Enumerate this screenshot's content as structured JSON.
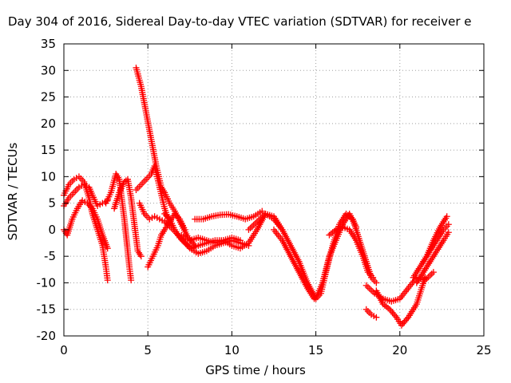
{
  "chart_data": {
    "type": "scatter",
    "title": "Day 304 of 2016, Sidereal Day-to-day VTEC variation (SDTVAR) for receiver e",
    "xlabel": "GPS time / hours",
    "ylabel": "SDTVAR / TECUs",
    "xlim": [
      0,
      25
    ],
    "ylim": [
      -20,
      35
    ],
    "xticks": [
      "0",
      "5",
      "10",
      "15",
      "20",
      "25"
    ],
    "yticks": [
      "-20",
      "-15",
      "-10",
      "-5",
      "0",
      "5",
      "10",
      "15",
      "20",
      "25",
      "30",
      "35"
    ],
    "grid": true,
    "marker": "plus",
    "color": "#ff0000",
    "series": [
      {
        "x": [
          0.0,
          0.3,
          0.6,
          0.9,
          1.2,
          1.5,
          1.7,
          2.0,
          2.3,
          2.5,
          2.6
        ],
        "y": [
          6.5,
          8.5,
          9.5,
          10.0,
          9.0,
          6.0,
          3.0,
          0.0,
          -3.0,
          -7.0,
          -9.5
        ]
      },
      {
        "x": [
          0.0,
          0.3,
          0.6,
          0.9,
          1.2,
          1.5,
          1.7,
          2.0,
          2.3,
          2.6
        ],
        "y": [
          4.5,
          6.0,
          7.0,
          8.0,
          8.5,
          8.0,
          6.5,
          4.5,
          5.0,
          5.5
        ]
      },
      {
        "x": [
          0.0,
          0.2,
          0.5,
          0.8,
          1.1,
          1.4,
          1.7,
          2.0,
          2.3,
          2.6
        ],
        "y": [
          0.0,
          -1.0,
          2.0,
          4.0,
          5.5,
          5.0,
          4.0,
          2.0,
          -1.0,
          -3.5
        ]
      },
      {
        "x": [
          2.5,
          2.8,
          3.1,
          3.3,
          3.6,
          3.9,
          4.0
        ],
        "y": [
          5.0,
          7.0,
          10.5,
          9.5,
          2.0,
          -7.0,
          -9.5
        ]
      },
      {
        "x": [
          3.0,
          3.3,
          3.6,
          3.8,
          4.0,
          4.2,
          4.4,
          4.6
        ],
        "y": [
          4.0,
          7.0,
          9.0,
          9.5,
          6.0,
          1.0,
          -4.0,
          -5.0
        ]
      },
      {
        "x": [
          4.3,
          4.6,
          4.9,
          5.2,
          5.5,
          5.8,
          6.0,
          6.3,
          6.6,
          7.0,
          7.4,
          7.8
        ],
        "y": [
          30.5,
          27.0,
          22.0,
          17.0,
          12.0,
          8.0,
          7.0,
          5.0,
          3.5,
          1.0,
          -1.5,
          -3.0
        ]
      },
      {
        "x": [
          4.3,
          4.6,
          4.9,
          5.2,
          5.4,
          5.7,
          6.0,
          6.3
        ],
        "y": [
          7.5,
          8.5,
          9.5,
          10.5,
          12.0,
          8.0,
          4.0,
          1.0
        ]
      },
      {
        "x": [
          4.5,
          4.8,
          5.1,
          5.4,
          5.7,
          6.0,
          6.2,
          6.5,
          6.8,
          7.1,
          7.5,
          8.0,
          8.5,
          9.0,
          9.5,
          10.0,
          10.5,
          11.0
        ],
        "y": [
          5.0,
          3.0,
          2.0,
          2.5,
          2.0,
          1.5,
          1.0,
          0.0,
          -1.0,
          -2.0,
          -3.5,
          -4.5,
          -4.0,
          -3.0,
          -2.5,
          -2.0,
          -2.5,
          -3.0
        ]
      },
      {
        "x": [
          5.0,
          5.3,
          5.6,
          5.8,
          6.0,
          6.3,
          6.6,
          6.9,
          7.2
        ],
        "y": [
          -7.0,
          -5.0,
          -3.0,
          -1.0,
          0.0,
          1.5,
          3.0,
          2.0,
          0.0
        ]
      },
      {
        "x": [
          6.0,
          6.3,
          6.6,
          6.9,
          7.2,
          7.6,
          8.0,
          8.5,
          9.0,
          9.5,
          10.0,
          10.5,
          11.0,
          11.5,
          12.0,
          12.5,
          13.0
        ],
        "y": [
          3.0,
          2.0,
          0.0,
          -1.5,
          -2.5,
          -3.5,
          -3.0,
          -2.5,
          -2.0,
          -2.0,
          -3.0,
          -3.5,
          -2.5,
          0.0,
          3.0,
          2.0,
          0.0
        ]
      },
      {
        "x": [
          7.8,
          8.3,
          8.8,
          9.3,
          9.8,
          10.3,
          10.8,
          11.3,
          11.8
        ],
        "y": [
          2.0,
          2.0,
          2.5,
          2.8,
          2.9,
          2.5,
          2.0,
          2.5,
          3.5
        ]
      },
      {
        "x": [
          7.0,
          7.5,
          8.0,
          8.5,
          9.0,
          9.5,
          10.0,
          10.5
        ],
        "y": [
          -1.0,
          -2.0,
          -1.5,
          -2.0,
          -2.5,
          -2.0,
          -1.5,
          -2.0
        ]
      },
      {
        "x": [
          11.0,
          11.5,
          12.0,
          12.5,
          13.0,
          13.5,
          14.0,
          14.5,
          15.0,
          15.3,
          15.6,
          16.0,
          16.4,
          16.8,
          17.2,
          17.6,
          18.0,
          18.3,
          18.6
        ],
        "y": [
          0.0,
          1.5,
          3.0,
          2.5,
          0.0,
          -3.0,
          -6.0,
          -10.0,
          -13.0,
          -12.0,
          -8.0,
          -3.0,
          1.0,
          3.0,
          2.0,
          -2.0,
          -6.0,
          -9.0,
          -10.0
        ]
      },
      {
        "x": [
          12.5,
          13.0,
          13.5,
          14.0,
          14.5,
          14.9
        ],
        "y": [
          0.0,
          -2.0,
          -5.0,
          -8.0,
          -11.0,
          -13.0
        ]
      },
      {
        "x": [
          15.0,
          15.4,
          15.8,
          16.2,
          16.6,
          17.0,
          17.4
        ],
        "y": [
          -13.0,
          -10.0,
          -5.0,
          -2.0,
          1.0,
          3.0,
          0.5
        ]
      },
      {
        "x": [
          15.8,
          16.2,
          16.6,
          17.0,
          17.4,
          17.8,
          18.1,
          18.4
        ],
        "y": [
          -1.0,
          0.0,
          0.5,
          0.0,
          -2.0,
          -5.0,
          -8.0,
          -9.0
        ]
      },
      {
        "x": [
          18.0,
          18.5,
          19.0,
          19.5,
          20.0,
          20.5,
          21.0,
          21.5,
          22.0
        ],
        "y": [
          -10.5,
          -12.0,
          -13.0,
          -13.5,
          -13.0,
          -11.0,
          -9.0,
          -9.5,
          -8.0
        ]
      },
      {
        "x": [
          18.0,
          18.3,
          18.6
        ],
        "y": [
          -15.0,
          -16.0,
          -16.5
        ]
      },
      {
        "x": [
          18.6,
          19.0,
          19.4,
          19.8,
          20.1,
          20.5,
          21.0,
          21.5
        ],
        "y": [
          -11.5,
          -14.0,
          -15.0,
          -16.5,
          -18.0,
          -16.5,
          -14.0,
          -9.0
        ]
      },
      {
        "x": [
          20.8,
          21.2,
          21.6,
          22.0,
          22.4,
          22.8
        ],
        "y": [
          -9.0,
          -7.0,
          -5.0,
          -2.0,
          0.5,
          2.5
        ]
      },
      {
        "x": [
          21.0,
          21.4,
          21.8,
          22.2,
          22.6,
          22.9
        ],
        "y": [
          -10.0,
          -8.0,
          -6.0,
          -4.0,
          -2.0,
          -0.5
        ]
      },
      {
        "x": [
          21.4,
          21.8,
          22.2,
          22.6,
          22.9
        ],
        "y": [
          -6.0,
          -4.0,
          -2.0,
          0.0,
          1.0
        ]
      }
    ]
  }
}
